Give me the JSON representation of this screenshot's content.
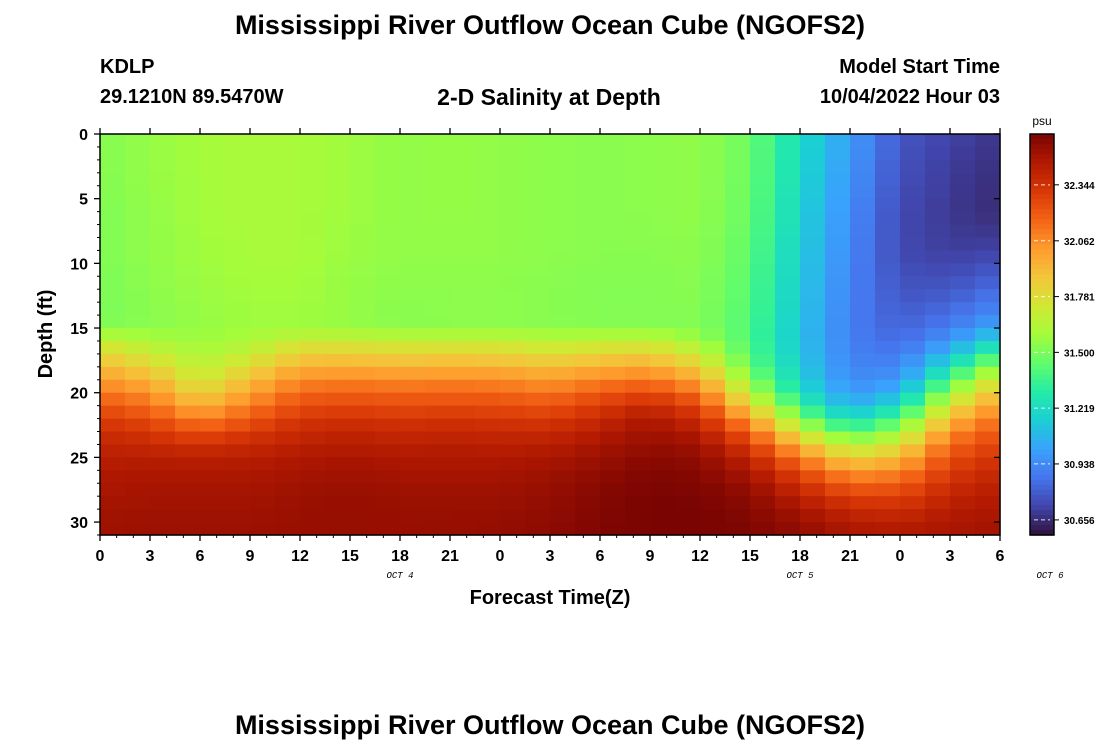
{
  "header": {
    "title": "Mississippi River Outflow Ocean Cube (NGOFS2)",
    "station_id": "KDLP",
    "coordinates": "29.1210N  89.5470W",
    "plot_title": "2-D Salinity at Depth",
    "model_start_label": "Model Start Time",
    "model_start_value": "10/04/2022 Hour 03"
  },
  "footer": {
    "title": "Mississippi River Outflow Ocean Cube (NGOFS2)"
  },
  "chart_data": {
    "type": "heatmap",
    "title": "2-D Salinity at Depth",
    "xlabel": "Forecast Time(Z)",
    "ylabel": "Depth (ft)",
    "x_ticks": [
      "0",
      "3",
      "6",
      "9",
      "12",
      "15",
      "18",
      "21",
      "0",
      "3",
      "6",
      "9",
      "12",
      "15",
      "18",
      "21",
      "0",
      "3",
      "6"
    ],
    "date_labels": [
      {
        "tick_index": 6,
        "label": "OCT 4"
      },
      {
        "tick_index": 14,
        "label": "OCT 5"
      },
      {
        "tick_index": 19,
        "label": "OCT 6"
      }
    ],
    "x_range_hours": [
      0,
      54
    ],
    "y_ticks": [
      "0",
      "5",
      "10",
      "15",
      "20",
      "25",
      "30"
    ],
    "y_range": [
      0,
      31
    ],
    "y_inverted": true,
    "colorbar": {
      "unit": "psu",
      "ticks": [
        "32.344",
        "32.062",
        "31.781",
        "31.500",
        "31.219",
        "30.938",
        "30.656"
      ],
      "range": [
        30.58,
        32.6
      ],
      "colormap": [
        "#30123b",
        "#4145ab",
        "#4675ed",
        "#39a2fc",
        "#1bcfd4",
        "#24eca6",
        "#61fc6c",
        "#a4fc3b",
        "#d1e834",
        "#f3c63a",
        "#fe9b2d",
        "#f36315",
        "#d93806",
        "#b11901",
        "#7a0402"
      ]
    },
    "grid_x_hours": [
      0,
      3,
      6,
      9,
      12,
      15,
      18,
      21,
      24,
      27,
      30,
      33,
      36,
      39,
      42,
      45,
      48,
      51,
      54
    ],
    "grid_depths_ft": [
      0,
      3,
      6,
      9,
      12,
      14,
      15,
      16,
      17,
      18,
      19,
      20,
      21,
      22,
      23,
      24,
      25,
      26,
      27,
      28,
      29,
      30,
      31
    ],
    "values": [
      [
        31.52,
        31.56,
        31.59,
        31.61,
        31.6,
        31.58,
        31.55,
        31.56,
        31.55,
        31.54,
        31.53,
        31.54,
        31.55,
        31.47,
        31.22,
        31.0,
        30.78,
        30.72,
        30.68
      ],
      [
        31.52,
        31.56,
        31.59,
        31.61,
        31.6,
        31.58,
        31.55,
        31.56,
        31.55,
        31.54,
        31.53,
        31.54,
        31.55,
        31.47,
        31.2,
        30.98,
        30.76,
        30.7,
        30.66
      ],
      [
        31.51,
        31.55,
        31.59,
        31.61,
        31.6,
        31.58,
        31.55,
        31.56,
        31.55,
        31.54,
        31.53,
        31.54,
        31.55,
        31.46,
        31.18,
        30.95,
        30.74,
        30.69,
        30.65
      ],
      [
        31.51,
        31.55,
        31.58,
        31.6,
        31.6,
        31.57,
        31.55,
        31.55,
        31.55,
        31.54,
        31.53,
        31.53,
        31.54,
        31.44,
        31.16,
        30.93,
        30.74,
        30.7,
        30.72
      ],
      [
        31.5,
        31.54,
        31.57,
        31.59,
        31.59,
        31.56,
        31.54,
        31.54,
        31.54,
        31.53,
        31.52,
        31.52,
        31.53,
        31.42,
        31.14,
        30.91,
        30.77,
        30.78,
        30.85
      ],
      [
        31.5,
        31.53,
        31.56,
        31.58,
        31.58,
        31.56,
        31.53,
        31.54,
        31.54,
        31.53,
        31.52,
        31.52,
        31.52,
        31.41,
        31.13,
        30.9,
        30.8,
        30.85,
        30.95
      ],
      [
        31.52,
        31.54,
        31.56,
        31.58,
        31.58,
        31.56,
        31.54,
        31.54,
        31.54,
        31.53,
        31.53,
        31.52,
        31.52,
        31.4,
        31.12,
        30.9,
        30.82,
        30.9,
        31.05
      ],
      [
        31.7,
        31.62,
        31.58,
        31.62,
        31.72,
        31.72,
        31.7,
        31.7,
        31.7,
        31.66,
        31.68,
        31.7,
        31.58,
        31.4,
        31.12,
        30.9,
        30.84,
        30.98,
        31.2
      ],
      [
        31.82,
        31.72,
        31.62,
        31.7,
        31.84,
        31.84,
        31.82,
        31.83,
        31.82,
        31.78,
        31.82,
        31.84,
        31.7,
        31.42,
        31.13,
        30.91,
        30.88,
        31.1,
        31.4
      ],
      [
        31.92,
        31.82,
        31.66,
        31.8,
        31.95,
        31.96,
        31.94,
        31.95,
        31.94,
        31.9,
        31.95,
        31.98,
        31.84,
        31.46,
        31.15,
        30.92,
        30.92,
        31.24,
        31.6
      ],
      [
        32.02,
        31.94,
        31.72,
        31.9,
        32.06,
        32.08,
        32.06,
        32.07,
        32.06,
        32.02,
        32.08,
        32.12,
        31.98,
        31.54,
        31.18,
        30.94,
        30.98,
        31.4,
        31.78
      ],
      [
        32.12,
        32.04,
        31.82,
        32.0,
        32.16,
        32.18,
        32.16,
        32.17,
        32.16,
        32.12,
        32.2,
        32.26,
        32.12,
        31.66,
        31.24,
        30.98,
        31.08,
        31.58,
        31.92
      ],
      [
        32.22,
        32.14,
        31.94,
        32.1,
        32.24,
        32.26,
        32.24,
        32.25,
        32.24,
        32.22,
        32.3,
        32.38,
        32.26,
        31.82,
        31.36,
        31.06,
        31.22,
        31.76,
        32.04
      ],
      [
        32.3,
        32.24,
        32.08,
        32.2,
        32.32,
        32.34,
        32.32,
        32.33,
        32.32,
        32.3,
        32.38,
        32.46,
        32.36,
        32.0,
        31.52,
        31.2,
        31.4,
        31.92,
        32.14
      ],
      [
        32.36,
        32.32,
        32.22,
        32.3,
        32.38,
        32.4,
        32.38,
        32.39,
        32.38,
        32.38,
        32.44,
        32.5,
        32.44,
        32.16,
        31.72,
        31.4,
        31.58,
        32.05,
        32.22
      ],
      [
        32.4,
        32.38,
        32.34,
        32.38,
        32.42,
        32.44,
        32.42,
        32.43,
        32.42,
        32.43,
        32.48,
        32.53,
        32.5,
        32.3,
        31.92,
        31.62,
        31.76,
        32.16,
        32.28
      ],
      [
        32.43,
        32.43,
        32.42,
        32.43,
        32.46,
        32.47,
        32.46,
        32.46,
        32.46,
        32.47,
        32.51,
        32.56,
        32.54,
        32.4,
        32.1,
        31.82,
        31.92,
        32.24,
        32.34
      ],
      [
        32.45,
        32.46,
        32.46,
        32.46,
        32.48,
        32.5,
        32.48,
        32.48,
        32.48,
        32.5,
        32.54,
        32.58,
        32.56,
        32.46,
        32.24,
        32.0,
        32.06,
        32.3,
        32.38
      ],
      [
        32.47,
        32.48,
        32.48,
        32.48,
        32.5,
        32.51,
        32.5,
        32.5,
        32.5,
        32.52,
        32.56,
        32.59,
        32.58,
        32.52,
        32.34,
        32.16,
        32.18,
        32.36,
        32.42
      ],
      [
        32.48,
        32.49,
        32.49,
        32.49,
        32.51,
        32.52,
        32.51,
        32.51,
        32.51,
        32.53,
        32.57,
        32.6,
        32.59,
        32.55,
        32.42,
        32.28,
        32.28,
        32.4,
        32.45
      ],
      [
        32.49,
        32.5,
        32.5,
        32.5,
        32.52,
        32.53,
        32.52,
        32.52,
        32.52,
        32.54,
        32.58,
        32.6,
        32.6,
        32.57,
        32.48,
        32.38,
        32.36,
        32.44,
        32.47
      ],
      [
        32.5,
        32.51,
        32.51,
        32.51,
        32.52,
        32.53,
        32.52,
        32.52,
        32.53,
        32.55,
        32.58,
        32.6,
        32.6,
        32.58,
        32.52,
        32.44,
        32.42,
        32.46,
        32.49
      ],
      [
        32.5,
        32.51,
        32.51,
        32.51,
        32.52,
        32.53,
        32.52,
        32.53,
        32.53,
        32.55,
        32.59,
        32.6,
        32.6,
        32.59,
        32.54,
        32.48,
        32.46,
        32.48,
        32.5
      ]
    ]
  }
}
